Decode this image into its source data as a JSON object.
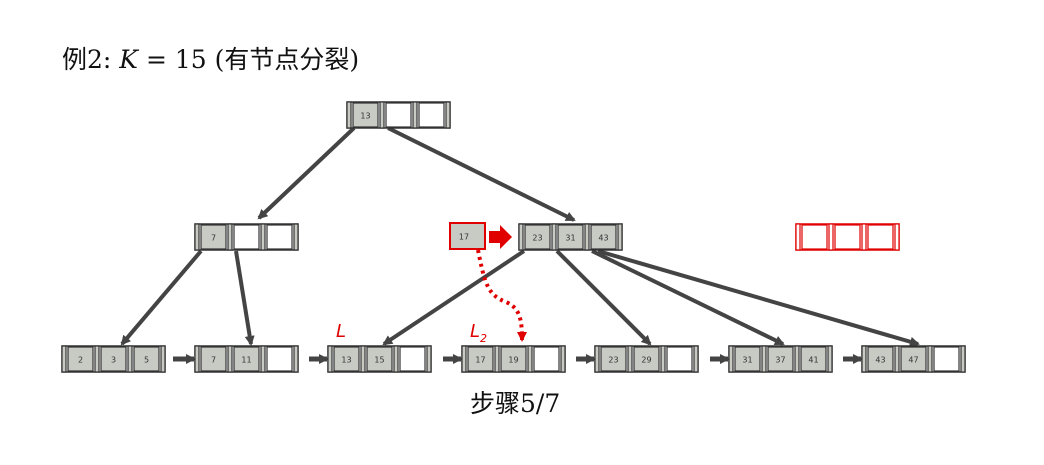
{
  "heading": {
    "prefix": "例2:",
    "k": "K",
    "equals": "= 15",
    "note": "(有节点分裂)"
  },
  "step_caption": "步骤5/7",
  "colors": {
    "node_fill": "#c8cac4",
    "edge": "#444444",
    "highlight": "#e00000"
  },
  "tree": {
    "root": {
      "keys": [
        "13"
      ]
    },
    "internal_left": {
      "keys": [
        "7"
      ]
    },
    "internal_right": {
      "keys": [
        "23",
        "31",
        "43"
      ]
    },
    "promoted": {
      "keys": [
        "17"
      ]
    },
    "new_internal": {
      "keys": []
    },
    "leaves": [
      {
        "keys": [
          "2",
          "3",
          "5"
        ]
      },
      {
        "keys": [
          "7",
          "11"
        ]
      },
      {
        "keys": [
          "13",
          "15"
        ],
        "label": "L"
      },
      {
        "keys": [
          "17",
          "19"
        ],
        "label": "L",
        "label_sub": "2"
      },
      {
        "keys": [
          "23",
          "29"
        ]
      },
      {
        "keys": [
          "31",
          "37",
          "41"
        ]
      },
      {
        "keys": [
          "43",
          "47"
        ]
      }
    ]
  }
}
